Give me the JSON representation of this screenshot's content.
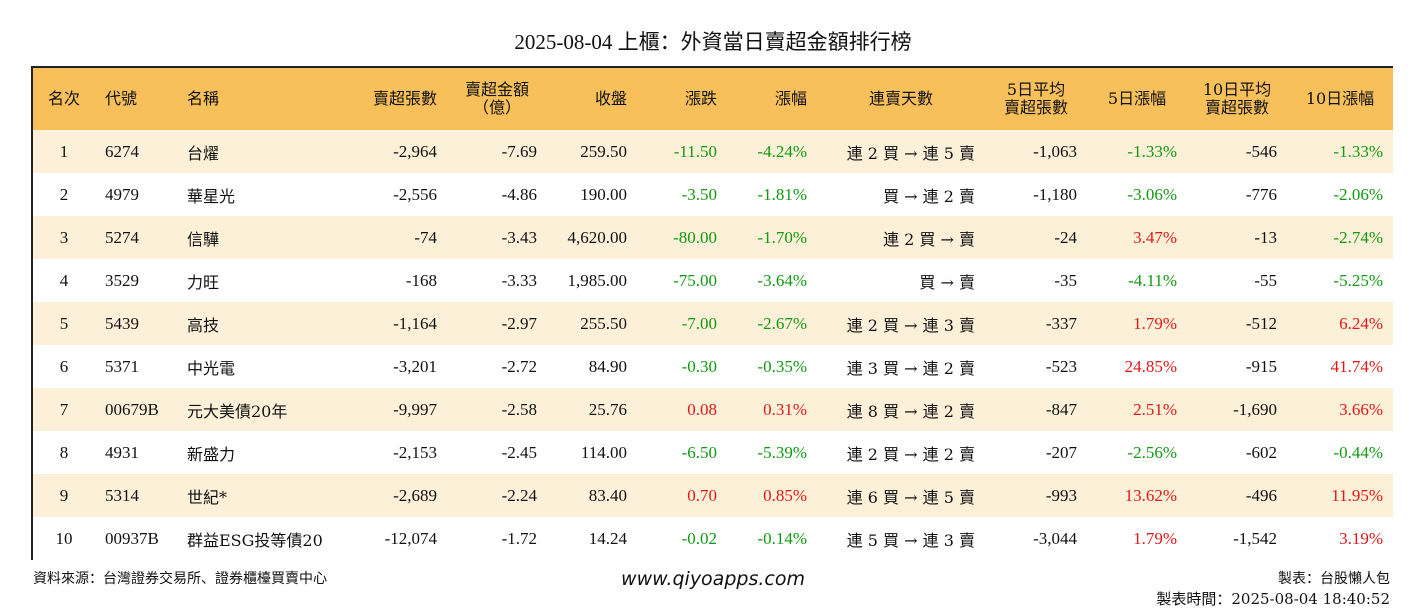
{
  "title": "2025-08-04 上櫃：外資當日賣超金額排行榜",
  "headers": [
    "名次",
    "代號",
    "名稱",
    "賣超張數",
    "賣超金額\n（億）",
    "收盤",
    "漲跌",
    "漲幅",
    "連賣天數",
    "5日平均\n賣超張數",
    "5日漲幅",
    "10日平均\n賣超張數",
    "10日漲幅"
  ],
  "rows": [
    {
      "rank": "1",
      "code": "6274",
      "name": "台燿",
      "sell_qty": "-2,964",
      "sell_amt": "-7.69",
      "close": "259.50",
      "change": "-11.50",
      "change_dir": "neg",
      "pct": "-4.24%",
      "pct_dir": "neg",
      "streak": "連 2 買 → 連 5 賣",
      "avg5": "-1,063",
      "pct5": "-1.33%",
      "pct5_dir": "neg",
      "avg10": "-546",
      "pct10": "-1.33%",
      "pct10_dir": "neg"
    },
    {
      "rank": "2",
      "code": "4979",
      "name": "華星光",
      "sell_qty": "-2,556",
      "sell_amt": "-4.86",
      "close": "190.00",
      "change": "-3.50",
      "change_dir": "neg",
      "pct": "-1.81%",
      "pct_dir": "neg",
      "streak": "買 → 連 2 賣",
      "avg5": "-1,180",
      "pct5": "-3.06%",
      "pct5_dir": "neg",
      "avg10": "-776",
      "pct10": "-2.06%",
      "pct10_dir": "neg"
    },
    {
      "rank": "3",
      "code": "5274",
      "name": "信驊",
      "sell_qty": "-74",
      "sell_amt": "-3.43",
      "close": "4,620.00",
      "change": "-80.00",
      "change_dir": "neg",
      "pct": "-1.70%",
      "pct_dir": "neg",
      "streak": "連 2 買 → 賣",
      "avg5": "-24",
      "pct5": "3.47%",
      "pct5_dir": "pos",
      "avg10": "-13",
      "pct10": "-2.74%",
      "pct10_dir": "neg"
    },
    {
      "rank": "4",
      "code": "3529",
      "name": "力旺",
      "sell_qty": "-168",
      "sell_amt": "-3.33",
      "close": "1,985.00",
      "change": "-75.00",
      "change_dir": "neg",
      "pct": "-3.64%",
      "pct_dir": "neg",
      "streak": "買 → 賣",
      "avg5": "-35",
      "pct5": "-4.11%",
      "pct5_dir": "neg",
      "avg10": "-55",
      "pct10": "-5.25%",
      "pct10_dir": "neg"
    },
    {
      "rank": "5",
      "code": "5439",
      "name": "高技",
      "sell_qty": "-1,164",
      "sell_amt": "-2.97",
      "close": "255.50",
      "change": "-7.00",
      "change_dir": "neg",
      "pct": "-2.67%",
      "pct_dir": "neg",
      "streak": "連 2 買 → 連 3 賣",
      "avg5": "-337",
      "pct5": "1.79%",
      "pct5_dir": "pos",
      "avg10": "-512",
      "pct10": "6.24%",
      "pct10_dir": "pos"
    },
    {
      "rank": "6",
      "code": "5371",
      "name": "中光電",
      "sell_qty": "-3,201",
      "sell_amt": "-2.72",
      "close": "84.90",
      "change": "-0.30",
      "change_dir": "neg",
      "pct": "-0.35%",
      "pct_dir": "neg",
      "streak": "連 3 買 → 連 2 賣",
      "avg5": "-523",
      "pct5": "24.85%",
      "pct5_dir": "pos",
      "avg10": "-915",
      "pct10": "41.74%",
      "pct10_dir": "pos"
    },
    {
      "rank": "7",
      "code": "00679B",
      "name": "元大美債20年",
      "sell_qty": "-9,997",
      "sell_amt": "-2.58",
      "close": "25.76",
      "change": "0.08",
      "change_dir": "pos",
      "pct": "0.31%",
      "pct_dir": "pos",
      "streak": "連 8 買 → 連 2 賣",
      "avg5": "-847",
      "pct5": "2.51%",
      "pct5_dir": "pos",
      "avg10": "-1,690",
      "pct10": "3.66%",
      "pct10_dir": "pos"
    },
    {
      "rank": "8",
      "code": "4931",
      "name": "新盛力",
      "sell_qty": "-2,153",
      "sell_amt": "-2.45",
      "close": "114.00",
      "change": "-6.50",
      "change_dir": "neg",
      "pct": "-5.39%",
      "pct_dir": "neg",
      "streak": "連 2 買 → 連 2 賣",
      "avg5": "-207",
      "pct5": "-2.56%",
      "pct5_dir": "neg",
      "avg10": "-602",
      "pct10": "-0.44%",
      "pct10_dir": "neg"
    },
    {
      "rank": "9",
      "code": "5314",
      "name": "世紀*",
      "sell_qty": "-2,689",
      "sell_amt": "-2.24",
      "close": "83.40",
      "change": "0.70",
      "change_dir": "pos",
      "pct": "0.85%",
      "pct_dir": "pos",
      "streak": "連 6 買 → 連 5 賣",
      "avg5": "-993",
      "pct5": "13.62%",
      "pct5_dir": "pos",
      "avg10": "-496",
      "pct10": "11.95%",
      "pct10_dir": "pos"
    },
    {
      "rank": "10",
      "code": "00937B",
      "name": "群益ESG投等債20",
      "sell_qty": "-12,074",
      "sell_amt": "-1.72",
      "close": "14.24",
      "change": "-0.02",
      "change_dir": "neg",
      "pct": "-0.14%",
      "pct_dir": "neg",
      "streak": "連 5 買 → 連 3 賣",
      "avg5": "-3,044",
      "pct5": "1.79%",
      "pct5_dir": "pos",
      "avg10": "-1,542",
      "pct10": "3.19%",
      "pct10_dir": "pos"
    }
  ],
  "colors": {
    "header_bg": "#f7c05a",
    "odd_row_bg": "#fdf0d8",
    "positive": "#e01818",
    "negative": "#119911"
  },
  "footer": {
    "source": "資料來源：台灣證券交易所、證券櫃檯買賣中心",
    "site": "www.qiyoapps.com",
    "maker": "製表：台股懶人包",
    "made_time": "製表時間：2025-08-04 18:40:52"
  }
}
